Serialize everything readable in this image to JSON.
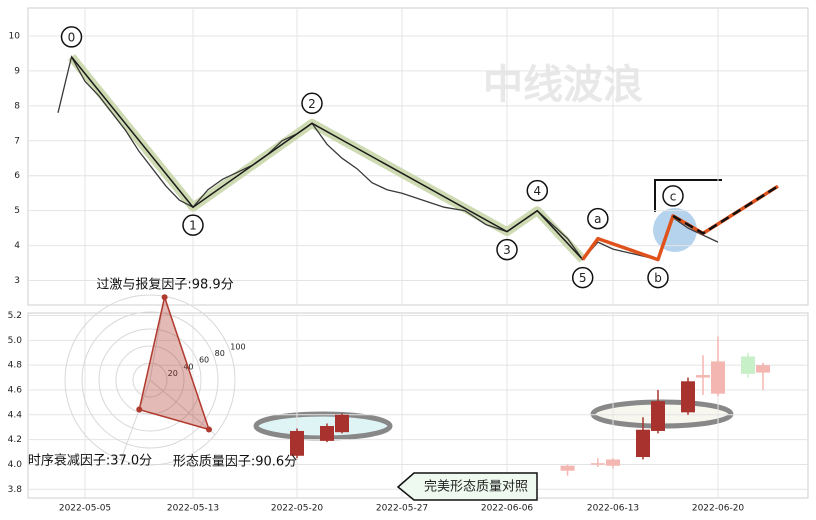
{
  "chart_data": [
    {
      "type": "line",
      "x": [
        "2022-05-03",
        "2022-05-04",
        "2022-05-05",
        "2022-05-06",
        "2022-05-07",
        "2022-05-08",
        "2022-05-09",
        "2022-05-10",
        "2022-05-11",
        "2022-05-12",
        "2022-05-13",
        "2022-05-14",
        "2022-05-15",
        "2022-05-16",
        "2022-05-17",
        "2022-05-18",
        "2022-05-19",
        "2022-05-20",
        "2022-05-21",
        "2022-05-22",
        "2022-05-23",
        "2022-05-24",
        "2022-05-25",
        "2022-05-26",
        "2022-05-27",
        "2022-05-29",
        "2022-05-31",
        "2022-06-02",
        "2022-06-04",
        "2022-06-06",
        "2022-06-07",
        "2022-06-08",
        "2022-06-09",
        "2022-06-10",
        "2022-06-11",
        "2022-06-12",
        "2022-06-13",
        "2022-06-14",
        "2022-06-15",
        "2022-06-16",
        "2022-06-17",
        "2022-06-18",
        "2022-06-19",
        "2022-06-20"
      ],
      "values": [
        7.8,
        9.4,
        8.7,
        8.3,
        7.8,
        7.3,
        6.7,
        6.2,
        5.7,
        5.3,
        5.1,
        5.6,
        5.9,
        6.1,
        6.3,
        6.6,
        7.0,
        7.2,
        7.5,
        6.9,
        6.5,
        6.2,
        5.8,
        5.6,
        5.5,
        5.3,
        5.1,
        5.0,
        4.6,
        4.4,
        4.7,
        5.0,
        4.6,
        4.2,
        3.6,
        4.1,
        3.9,
        3.8,
        3.7,
        3.6,
        4.8,
        4.5,
        4.3,
        4.1
      ],
      "color": "#3a3a3a",
      "waves": {
        "x": [
          "2022-05-04",
          "2022-05-13",
          "2022-05-21",
          "2022-06-06",
          "2022-06-08",
          "2022-06-11"
        ],
        "values": [
          9.4,
          5.1,
          7.5,
          4.4,
          5.0,
          3.6
        ],
        "labels": [
          "0",
          "1",
          "2",
          "3",
          "4",
          "5"
        ],
        "color": "#1a1a1a",
        "highlight": "#c9d6a9"
      },
      "projection": {
        "x": [
          "2022-06-11",
          "2022-06-12",
          "2022-06-16",
          "2022-06-17",
          "2022-06-19",
          "2022-06-24"
        ],
        "values": [
          3.6,
          4.2,
          3.6,
          4.85,
          4.35,
          5.7
        ],
        "labels": [
          null,
          "a",
          "b",
          "c",
          null,
          null
        ],
        "color": "#e0521c"
      },
      "ylim": [
        2.3,
        10.8
      ],
      "yticks": [
        3,
        4,
        5,
        6,
        7,
        8,
        9,
        10
      ],
      "grid": true
    },
    {
      "type": "candlestick",
      "x": [
        "2022-05-20",
        "2022-05-22",
        "2022-05-23",
        "2022-06-10",
        "2022-06-12",
        "2022-06-13",
        "2022-06-15",
        "2022-06-16",
        "2022-06-18",
        "2022-06-19",
        "2022-06-20",
        "2022-06-22",
        "2022-06-23"
      ],
      "open": [
        4.07,
        4.19,
        4.26,
        3.99,
        4.0,
        4.04,
        4.06,
        4.27,
        4.42,
        4.72,
        4.57,
        4.87,
        4.8
      ],
      "close": [
        4.27,
        4.31,
        4.4,
        3.95,
        4.01,
        3.99,
        4.28,
        4.51,
        4.67,
        4.7,
        4.83,
        4.73,
        4.74
      ],
      "high": [
        4.29,
        4.33,
        4.41,
        4.0,
        4.05,
        4.05,
        4.38,
        4.6,
        4.7,
        4.88,
        5.03,
        4.9,
        4.82
      ],
      "low": [
        4.05,
        4.18,
        4.25,
        3.91,
        3.98,
        3.97,
        4.04,
        4.25,
        4.4,
        4.56,
        4.55,
        4.7,
        4.6
      ],
      "colors": [
        "#a8322d",
        "#a8322d",
        "#a8322d",
        "#f4b6b0",
        "#f4b6b0",
        "#f4b6b0",
        "#a8322d",
        "#a8322d",
        "#a8322d",
        "#f4b6b0",
        "#f4b6b0",
        "#c8f0c8",
        "#f4b6b0"
      ],
      "ylim": [
        3.73,
        5.22
      ],
      "yticks": [
        3.8,
        {
          "value": 4,
          "label": "4.0"
        },
        4.2,
        4.4,
        4.6,
        4.8,
        {
          "value": 5,
          "label": "5.0"
        },
        5.2
      ],
      "xticks": [
        "2022-05-05",
        "2022-05-13",
        "2022-05-20",
        "2022-05-27",
        "2022-06-06",
        "2022-06-13",
        "2022-06-20"
      ],
      "grid": true
    },
    {
      "type": "radar",
      "factors": [
        {
          "label": "过激与报复因子:98.9分",
          "value": 98.9
        },
        {
          "label": "时序衰减因子:37.0分",
          "value": 37.0
        },
        {
          "label": "形态质量因子:90.6分",
          "value": 90.6
        }
      ],
      "rlim": [
        0,
        100
      ],
      "rticks": [
        20,
        40,
        60,
        80,
        100
      ],
      "color": "#b03a2e"
    }
  ],
  "watermark": "中线波浪",
  "button": "完美形态质量对照"
}
